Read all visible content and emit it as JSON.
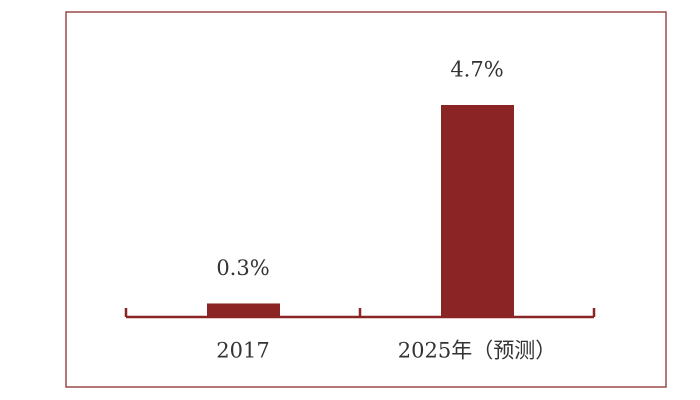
{
  "chart_data": {
    "type": "bar",
    "categories": [
      "2017",
      "2025年（预测）"
    ],
    "values": [
      0.3,
      4.7
    ],
    "value_labels": [
      "0.3%",
      "4.7%"
    ],
    "color": "#8b2525"
  }
}
